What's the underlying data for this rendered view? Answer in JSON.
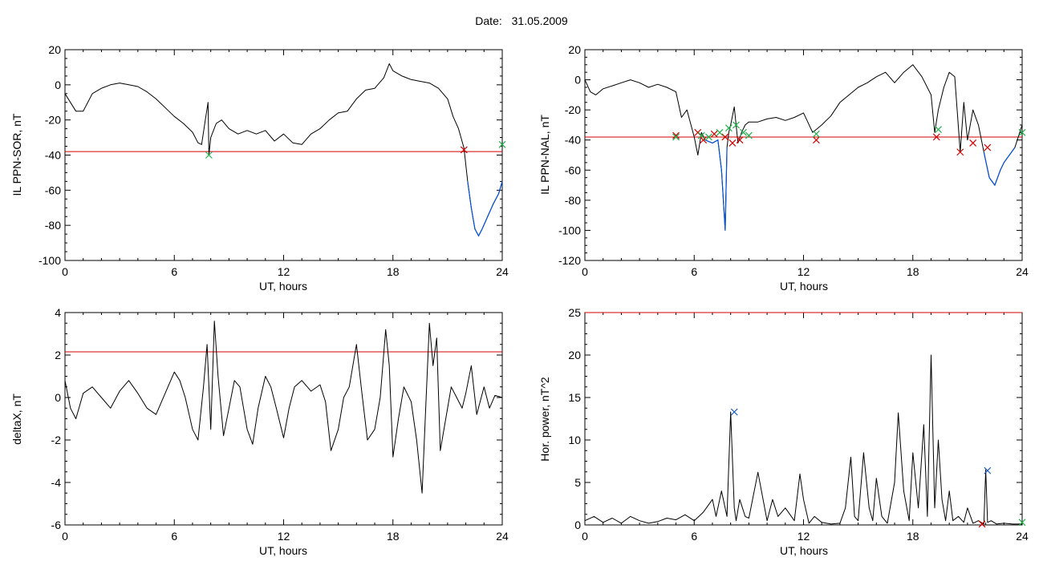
{
  "header": {
    "date_label": "Date:",
    "date_value": "31.05.2009"
  },
  "colors": {
    "trace": "#000000",
    "threshold": "#d40000",
    "event_trace": "#0050d8",
    "marker_red": "#d40000",
    "marker_green": "#22b14c",
    "marker_blue": "#2060c0"
  },
  "chart_data": [
    {
      "type": "line",
      "id": "il-sor",
      "title": "",
      "xlabel": "UT, hours",
      "ylabel": "IL PPN-SOR, nT",
      "xlim": [
        0,
        24
      ],
      "ylim": [
        -100,
        20
      ],
      "xticks": [
        0,
        6,
        12,
        18,
        24
      ],
      "yticks": [
        -100,
        -80,
        -60,
        -40,
        -20,
        0,
        20
      ],
      "grid": false,
      "threshold": -38,
      "series": [
        {
          "x": [
            0,
            0.3,
            0.6,
            1,
            1.5,
            2,
            2.5,
            3,
            3.5,
            4,
            4.5,
            5,
            5.5,
            6,
            6.5,
            7,
            7.3,
            7.5,
            7.7,
            7.85,
            7.9,
            8,
            8.3,
            8.6,
            9,
            9.5,
            10,
            10.5,
            11,
            11.5,
            12,
            12.5,
            13,
            13.5,
            14,
            14.5,
            15,
            15.5,
            16,
            16.5,
            17,
            17.5,
            17.8,
            18,
            18.5,
            19,
            19.5,
            20,
            20.5,
            21,
            21.3,
            21.6,
            21.9,
            22.1,
            22.3,
            22.5,
            22.7,
            22.9,
            23.2,
            23.5,
            23.8,
            24
          ],
          "y": [
            -5,
            -10,
            -15,
            -15,
            -5,
            -2,
            0,
            1,
            0,
            -1,
            -4,
            -8,
            -13,
            -18,
            -22,
            -27,
            -33,
            -34,
            -20,
            -10,
            -40,
            -30,
            -22,
            -20,
            -25,
            -28,
            -26,
            -28,
            -26,
            -32,
            -28,
            -33,
            -34,
            -28,
            -25,
            -20,
            -16,
            -15,
            -8,
            -3,
            -2,
            4,
            12,
            8,
            5,
            3,
            2,
            1,
            -2,
            -8,
            -18,
            -25,
            -36,
            -55,
            -70,
            -82,
            -86,
            -82,
            -75,
            -68,
            -62,
            -55
          ]
        }
      ],
      "markers": [
        {
          "kind": "x",
          "color": "red",
          "x": 21.9,
          "y": -37
        },
        {
          "kind": "x",
          "color": "green",
          "x": 7.9,
          "y": -40
        },
        {
          "kind": "x",
          "color": "green",
          "x": 24,
          "y": -34
        }
      ]
    },
    {
      "type": "line",
      "id": "il-nal",
      "title": "",
      "xlabel": "UT, hours",
      "ylabel": "IL PPN-NAL, nT",
      "xlim": [
        0,
        24
      ],
      "ylim": [
        -120,
        20
      ],
      "xticks": [
        0,
        6,
        12,
        18,
        24
      ],
      "yticks": [
        -120,
        -100,
        -80,
        -60,
        -40,
        -20,
        0,
        20
      ],
      "grid": false,
      "threshold": -38,
      "series": [
        {
          "x": [
            0,
            0.3,
            0.6,
            1,
            1.5,
            2,
            2.5,
            3,
            3.5,
            4,
            4.5,
            5,
            5.3,
            5.6,
            6,
            6.2,
            6.4,
            6.6,
            7,
            7.3,
            7.5,
            7.6,
            7.7,
            7.8,
            7.9,
            8,
            8.2,
            8.4,
            8.6,
            8.8,
            9,
            9.5,
            10,
            10.5,
            11,
            11.5,
            12,
            12.5,
            13,
            13.5,
            14,
            14.5,
            15,
            15.5,
            16,
            16.5,
            17,
            17.5,
            18,
            18.5,
            19,
            19.2,
            19.4,
            19.7,
            20,
            20.3,
            20.6,
            20.8,
            21,
            21.3,
            21.6,
            21.9,
            22.2,
            22.5,
            22.8,
            23,
            23.3,
            23.6,
            24
          ],
          "y": [
            0,
            -8,
            -10,
            -6,
            -4,
            -2,
            0,
            -2,
            -5,
            -3,
            -5,
            -8,
            -25,
            -20,
            -38,
            -50,
            -35,
            -40,
            -42,
            -40,
            -60,
            -80,
            -100,
            -45,
            -35,
            -30,
            -18,
            -42,
            -35,
            -30,
            -28,
            -28,
            -26,
            -25,
            -27,
            -25,
            -22,
            -35,
            -30,
            -24,
            -15,
            -10,
            -5,
            -2,
            2,
            5,
            -2,
            5,
            10,
            2,
            -10,
            -35,
            -20,
            -5,
            5,
            2,
            -48,
            -15,
            -40,
            -20,
            -30,
            -48,
            -65,
            -70,
            -60,
            -55,
            -50,
            -45,
            -30
          ]
        }
      ],
      "markers": [
        {
          "kind": "x",
          "color": "red",
          "x": 5,
          "y": -37
        },
        {
          "kind": "x",
          "color": "red",
          "x": 6.2,
          "y": -35
        },
        {
          "kind": "x",
          "color": "red",
          "x": 6.5,
          "y": -40
        },
        {
          "kind": "x",
          "color": "red",
          "x": 7.1,
          "y": -36
        },
        {
          "kind": "x",
          "color": "red",
          "x": 7.7,
          "y": -38
        },
        {
          "kind": "x",
          "color": "red",
          "x": 8.1,
          "y": -42
        },
        {
          "kind": "x",
          "color": "red",
          "x": 8.5,
          "y": -40
        },
        {
          "kind": "x",
          "color": "red",
          "x": 12.7,
          "y": -40
        },
        {
          "kind": "x",
          "color": "red",
          "x": 19.3,
          "y": -38
        },
        {
          "kind": "x",
          "color": "red",
          "x": 20.6,
          "y": -48
        },
        {
          "kind": "x",
          "color": "red",
          "x": 21.3,
          "y": -42
        },
        {
          "kind": "x",
          "color": "red",
          "x": 22.1,
          "y": -45
        },
        {
          "kind": "x",
          "color": "green",
          "x": 5,
          "y": -38
        },
        {
          "kind": "x",
          "color": "green",
          "x": 6.4,
          "y": -37
        },
        {
          "kind": "x",
          "color": "green",
          "x": 6.8,
          "y": -38
        },
        {
          "kind": "x",
          "color": "green",
          "x": 7.4,
          "y": -35
        },
        {
          "kind": "x",
          "color": "green",
          "x": 7.9,
          "y": -32
        },
        {
          "kind": "x",
          "color": "green",
          "x": 8.3,
          "y": -30
        },
        {
          "kind": "x",
          "color": "green",
          "x": 8.7,
          "y": -35
        },
        {
          "kind": "x",
          "color": "green",
          "x": 9,
          "y": -37
        },
        {
          "kind": "x",
          "color": "green",
          "x": 12.7,
          "y": -36
        },
        {
          "kind": "x",
          "color": "green",
          "x": 19.4,
          "y": -33
        },
        {
          "kind": "x",
          "color": "green",
          "x": 24,
          "y": -35
        }
      ]
    },
    {
      "type": "line",
      "id": "deltax",
      "title": "",
      "xlabel": "UT, hours",
      "ylabel": "deltaX, nT",
      "xlim": [
        0,
        24
      ],
      "ylim": [
        -6,
        4
      ],
      "xticks": [
        0,
        6,
        12,
        18,
        24
      ],
      "yticks": [
        -6,
        -4,
        -2,
        0,
        2,
        4
      ],
      "grid": false,
      "threshold": 2.15,
      "series": [
        {
          "x": [
            0,
            0.3,
            0.6,
            1,
            1.5,
            2,
            2.5,
            3,
            3.5,
            4,
            4.5,
            5,
            5.5,
            6,
            6.3,
            6.6,
            7,
            7.3,
            7.6,
            7.8,
            8,
            8.2,
            8.4,
            8.7,
            9,
            9.3,
            9.6,
            10,
            10.3,
            10.6,
            11,
            11.3,
            11.6,
            12,
            12.3,
            12.6,
            13,
            13.5,
            14,
            14.3,
            14.6,
            15,
            15.3,
            15.6,
            16,
            16.3,
            16.6,
            17,
            17.3,
            17.6,
            17.8,
            18,
            18.3,
            18.6,
            19,
            19.3,
            19.6,
            19.8,
            20,
            20.2,
            20.4,
            20.6,
            20.9,
            21.2,
            21.5,
            21.8,
            22,
            22.3,
            22.6,
            23,
            23.3,
            23.6,
            24
          ],
          "y": [
            0.8,
            -0.5,
            -1,
            0.2,
            0.5,
            0,
            -0.5,
            0.3,
            0.8,
            0.2,
            -0.5,
            -0.8,
            0.2,
            1.2,
            0.8,
            0,
            -1.5,
            -2,
            0.5,
            2.5,
            -1.5,
            3.6,
            1,
            -1.8,
            -0.5,
            0.8,
            0.5,
            -1.5,
            -2.2,
            -0.5,
            1,
            0.5,
            -0.5,
            -1.9,
            -0.5,
            0.5,
            0.8,
            0.3,
            0.6,
            -0.2,
            -2.5,
            -1.5,
            0,
            0.5,
            2.5,
            0.2,
            -2,
            -1.5,
            0,
            3.2,
            1.5,
            -2.8,
            -1,
            0.5,
            -0.2,
            -2,
            -4.5,
            -0.5,
            3.5,
            1.5,
            2.8,
            -2.5,
            -1,
            0.5,
            0,
            -0.5,
            0.2,
            1.5,
            -0.8,
            0.5,
            -0.5,
            0.1,
            0
          ]
        }
      ],
      "markers": []
    },
    {
      "type": "line",
      "id": "hor-power",
      "title": "",
      "xlabel": "UT, hours",
      "ylabel": "Hor. power, nT^2",
      "xlim": [
        0,
        24
      ],
      "ylim": [
        0,
        25
      ],
      "xticks": [
        0,
        6,
        12,
        18,
        24
      ],
      "yticks": [
        0,
        5,
        10,
        15,
        20,
        25
      ],
      "grid": false,
      "threshold": 25,
      "series": [
        {
          "x": [
            0,
            0.5,
            1,
            1.5,
            2,
            2.5,
            3,
            3.5,
            4,
            4.5,
            5,
            5.5,
            6,
            6.5,
            7,
            7.2,
            7.5,
            7.8,
            8,
            8.2,
            8.3,
            8.5,
            8.8,
            9,
            9.5,
            10,
            10.3,
            10.6,
            11,
            11.5,
            11.8,
            12,
            12.3,
            12.6,
            13,
            13.5,
            14,
            14.3,
            14.6,
            14.8,
            15,
            15.3,
            15.6,
            15.8,
            16,
            16.3,
            16.6,
            17,
            17.2,
            17.5,
            17.8,
            18,
            18.3,
            18.6,
            18.8,
            19,
            19.2,
            19.4,
            19.6,
            19.8,
            20,
            20.2,
            20.5,
            20.8,
            21,
            21.3,
            21.6,
            21.9,
            22,
            22.1,
            22.3,
            22.6,
            23,
            23.5,
            24
          ],
          "y": [
            0.5,
            1,
            0.3,
            0.8,
            0.2,
            1,
            0.5,
            0.2,
            0.4,
            0.8,
            0.6,
            1.2,
            0.5,
            1.5,
            3,
            1,
            4,
            1,
            13.3,
            2,
            0.5,
            3,
            1,
            0.8,
            6.2,
            0.5,
            3,
            1,
            2,
            0.5,
            6,
            3,
            0.2,
            1,
            0.3,
            0.1,
            0.2,
            2,
            8,
            1,
            0.5,
            8.5,
            2,
            0.5,
            5.5,
            1,
            0.2,
            5,
            13.2,
            4,
            0.5,
            8.5,
            2,
            11.8,
            1,
            20,
            2,
            10,
            3,
            0.5,
            4,
            0.5,
            1,
            0.3,
            2,
            0.2,
            0.5,
            0.1,
            6.5,
            0.3,
            0.5,
            0.1,
            0.2,
            0.1,
            0.1
          ]
        }
      ],
      "markers": [
        {
          "kind": "x",
          "color": "blue",
          "x": 8.2,
          "y": 13.3
        },
        {
          "kind": "x",
          "color": "blue",
          "x": 22.1,
          "y": 6.4
        },
        {
          "kind": "x",
          "color": "red",
          "x": 21.8,
          "y": 0.1
        },
        {
          "kind": "x",
          "color": "green",
          "x": 24,
          "y": 0.3
        }
      ]
    }
  ]
}
